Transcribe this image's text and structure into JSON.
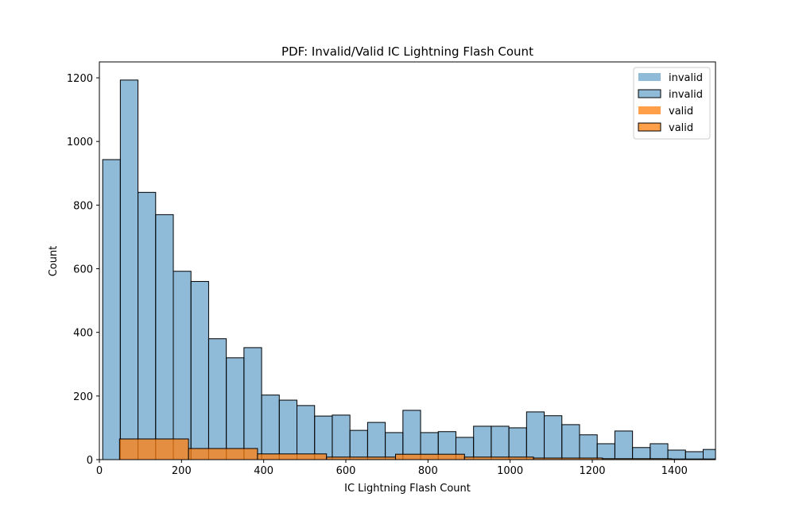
{
  "chart_data": {
    "type": "bar",
    "title": "PDF: Invalid/Valid IC Lightning Flash Count",
    "xlabel": "IC Lightning Flash Count",
    "ylabel": "Count",
    "xlim": [
      0,
      1500
    ],
    "ylim": [
      0,
      1250
    ],
    "xticks": [
      0,
      200,
      400,
      600,
      800,
      1000,
      1200,
      1400
    ],
    "yticks": [
      0,
      200,
      400,
      600,
      800,
      1000,
      1200
    ],
    "grid": false,
    "legend_position": "top-right",
    "legend": [
      {
        "label": "invalid",
        "style": "patch",
        "series": "invalid"
      },
      {
        "label": "invalid",
        "style": "patch-outlined",
        "series": "invalid"
      },
      {
        "label": "valid",
        "style": "patch",
        "series": "valid"
      },
      {
        "label": "valid",
        "style": "patch-outlined",
        "series": "valid"
      }
    ],
    "series": [
      {
        "name": "invalid",
        "color": "#1f77b4",
        "bin_edges": [
          8,
          51,
          94,
          137,
          180,
          223,
          266,
          309,
          352,
          395,
          438,
          481,
          524,
          567,
          610,
          653,
          696,
          739,
          782,
          825,
          868,
          911,
          954,
          997,
          1040,
          1083,
          1126,
          1169,
          1212,
          1255,
          1298,
          1341,
          1384,
          1427,
          1470,
          1513
        ],
        "values": [
          943,
          1193,
          840,
          770,
          592,
          560,
          380,
          320,
          352,
          203,
          187,
          170,
          137,
          140,
          92,
          117,
          85,
          155,
          85,
          88,
          70,
          105,
          105,
          100,
          150,
          138,
          110,
          78,
          50,
          90,
          38,
          50,
          30,
          25,
          32
        ]
      },
      {
        "name": "valid",
        "color": "#ff7f0e",
        "bin_edges": [
          49,
          217,
          385,
          553,
          721,
          889,
          1057,
          1225,
          1393,
          1561
        ],
        "values": [
          65,
          35,
          18,
          8,
          17,
          8,
          5,
          3,
          2
        ]
      }
    ]
  }
}
